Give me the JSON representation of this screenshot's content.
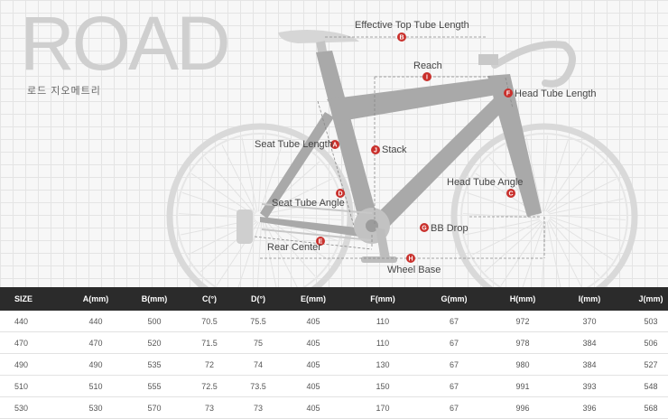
{
  "header": {
    "title": "ROAD",
    "subtitle": "로드 지오메트리"
  },
  "labels": [
    {
      "key": "effective_top_tube",
      "text": "Effective Top Tube Length",
      "tag": "B"
    },
    {
      "key": "reach",
      "text": "Reach",
      "tag": "I"
    },
    {
      "key": "head_tube_length",
      "text": "Head Tube Length",
      "tag": "F"
    },
    {
      "key": "seat_tube_length",
      "text": "Seat Tube Length",
      "tag": "A"
    },
    {
      "key": "stack",
      "text": "Stack",
      "tag": "J"
    },
    {
      "key": "head_tube_angle",
      "text": "Head Tube Angle",
      "tag": "C"
    },
    {
      "key": "seat_tube_angle",
      "text": "Seat Tube Angle",
      "tag": "D"
    },
    {
      "key": "bb_drop",
      "text": "BB Drop",
      "tag": "G"
    },
    {
      "key": "rear_center",
      "text": "Rear Center",
      "tag": "E"
    },
    {
      "key": "wheel_base",
      "text": "Wheel Base",
      "tag": "H"
    }
  ],
  "colors": {
    "accent": "#c9302c",
    "frame": "#a9a9a9",
    "wheel": "#d9d9d9",
    "header_bg": "#2b2b2b"
  },
  "table": {
    "columns": [
      "SIZE",
      "A(mm)",
      "B(mm)",
      "C(°)",
      "D(°)",
      "E(mm)",
      "F(mm)",
      "G(mm)",
      "H(mm)",
      "I(mm)",
      "J(mm)"
    ],
    "rows": [
      [
        "440",
        "440",
        "500",
        "70.5",
        "75.5",
        "405",
        "110",
        "67",
        "972",
        "370",
        "503"
      ],
      [
        "470",
        "470",
        "520",
        "71.5",
        "75",
        "405",
        "110",
        "67",
        "978",
        "384",
        "506"
      ],
      [
        "490",
        "490",
        "535",
        "72",
        "74",
        "405",
        "130",
        "67",
        "980",
        "384",
        "527"
      ],
      [
        "510",
        "510",
        "555",
        "72.5",
        "73.5",
        "405",
        "150",
        "67",
        "991",
        "393",
        "548"
      ],
      [
        "530",
        "530",
        "570",
        "73",
        "73",
        "405",
        "170",
        "67",
        "996",
        "396",
        "568"
      ]
    ]
  }
}
